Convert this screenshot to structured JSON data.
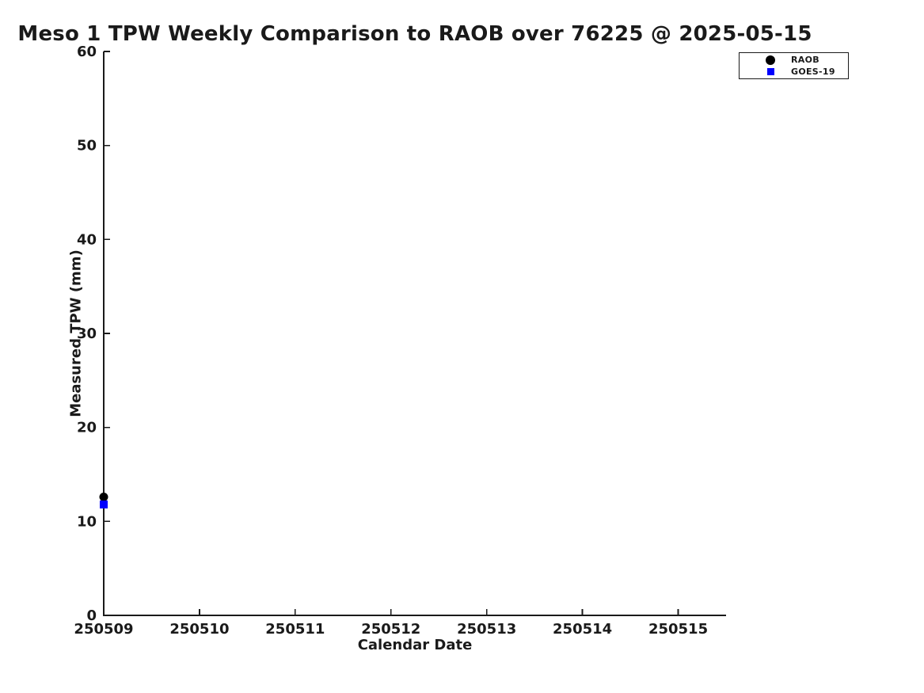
{
  "chart_data": {
    "type": "scatter",
    "title": "Meso 1 TPW Weekly Comparison to RAOB over 76225 @ 2025-05-15",
    "xlabel": "Calendar Date",
    "ylabel": "Measured TPW (mm)",
    "xlim": [
      250509,
      250515.5
    ],
    "ylim": [
      0,
      60
    ],
    "xticks": [
      "250509",
      "250510",
      "250511",
      "250512",
      "250513",
      "250514",
      "250515"
    ],
    "yticks": [
      0,
      10,
      20,
      30,
      40,
      50,
      60
    ],
    "grid": false,
    "tick_direction": "in",
    "axis_color": "#1a1a1a",
    "background_color": "#ffffff",
    "legend_position": "top-right",
    "series": [
      {
        "name": "RAOB",
        "marker": "circle",
        "color": "#000000",
        "points": [
          {
            "x": 250509,
            "y": 12.6
          }
        ]
      },
      {
        "name": "GOES-19",
        "marker": "square",
        "color": "#0000ff",
        "points": [
          {
            "x": 250509,
            "y": 11.8
          }
        ]
      }
    ]
  }
}
